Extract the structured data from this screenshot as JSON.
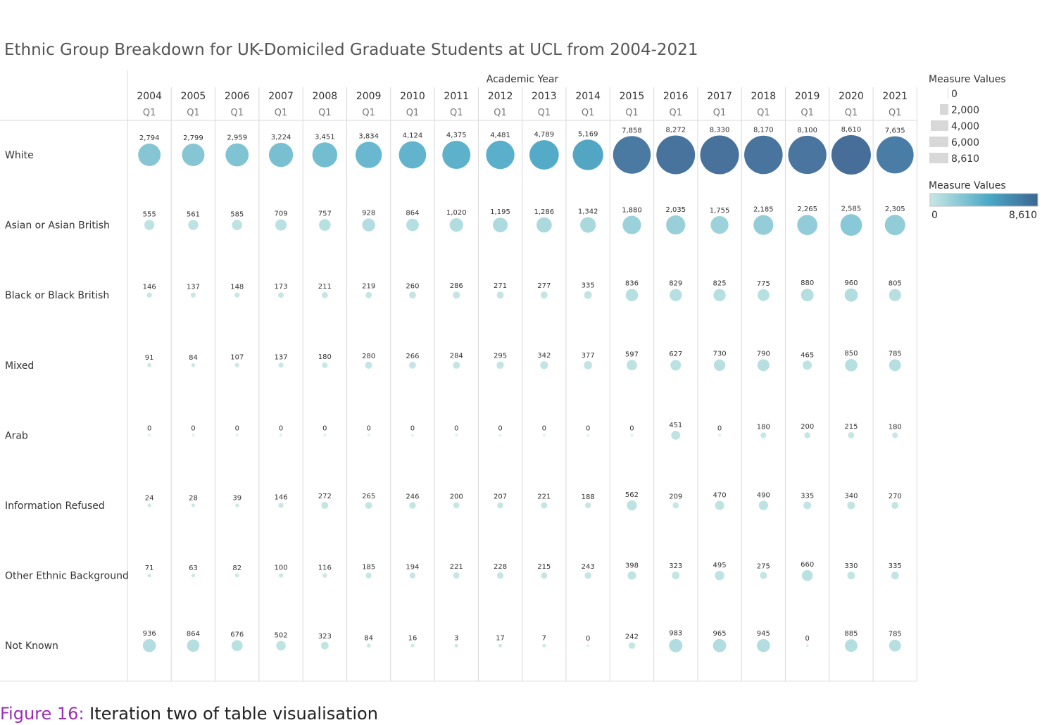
{
  "title": "Ethnic Group Breakdown for UK-Domiciled Graduate Students at UCL from 2004-2021",
  "caption": {
    "figure": "Figure 16:",
    "text": " Iteration two of table visualisation"
  },
  "chart_data": {
    "type": "table",
    "column_header": "Academic Year",
    "quarter_label": "Q1",
    "years": [
      "2004",
      "2005",
      "2006",
      "2007",
      "2008",
      "2009",
      "2010",
      "2011",
      "2012",
      "2013",
      "2014",
      "2015",
      "2016",
      "2017",
      "2018",
      "2019",
      "2020",
      "2021"
    ],
    "rows": [
      {
        "label": "White",
        "values": [
          2794,
          2799,
          2959,
          3224,
          3451,
          3834,
          4124,
          4375,
          4481,
          4789,
          5169,
          7858,
          8272,
          8330,
          8170,
          8100,
          8610,
          7635
        ]
      },
      {
        "label": "Asian or Asian British",
        "values": [
          555,
          561,
          585,
          709,
          757,
          928,
          864,
          1020,
          1195,
          1286,
          1342,
          1880,
          2035,
          1755,
          2185,
          2265,
          2585,
          2305
        ]
      },
      {
        "label": "Black or Black British",
        "values": [
          146,
          137,
          148,
          173,
          211,
          219,
          260,
          286,
          271,
          277,
          335,
          836,
          829,
          825,
          775,
          880,
          960,
          805
        ]
      },
      {
        "label": "Mixed",
        "values": [
          91,
          84,
          107,
          137,
          180,
          280,
          266,
          284,
          295,
          342,
          377,
          597,
          627,
          730,
          790,
          465,
          850,
          785
        ]
      },
      {
        "label": "Arab",
        "values": [
          0,
          0,
          0,
          0,
          0,
          0,
          0,
          0,
          0,
          0,
          0,
          0,
          451,
          0,
          180,
          200,
          215,
          180
        ]
      },
      {
        "label": "Information Refused",
        "values": [
          24,
          28,
          39,
          146,
          272,
          265,
          246,
          200,
          207,
          221,
          188,
          562,
          209,
          470,
          490,
          335,
          340,
          270
        ]
      },
      {
        "label": "Other Ethnic Background",
        "values": [
          71,
          63,
          82,
          100,
          116,
          185,
          194,
          221,
          228,
          215,
          243,
          398,
          323,
          495,
          275,
          660,
          330,
          335
        ]
      },
      {
        "label": "Not Known",
        "values": [
          936,
          864,
          676,
          502,
          323,
          84,
          16,
          3,
          17,
          7,
          0,
          242,
          983,
          965,
          945,
          0,
          885,
          785
        ]
      }
    ],
    "value_range": [
      0,
      8610
    ],
    "size_legend": {
      "title": "Measure Values",
      "entries": [
        "0",
        "2,000",
        "4,000",
        "6,000",
        "8,610"
      ]
    },
    "color_legend": {
      "title": "Measure Values",
      "min_label": "0",
      "max_label": "8,610",
      "colors": [
        "#c8e8e4",
        "#4aa8c6",
        "#3d6593"
      ]
    }
  }
}
